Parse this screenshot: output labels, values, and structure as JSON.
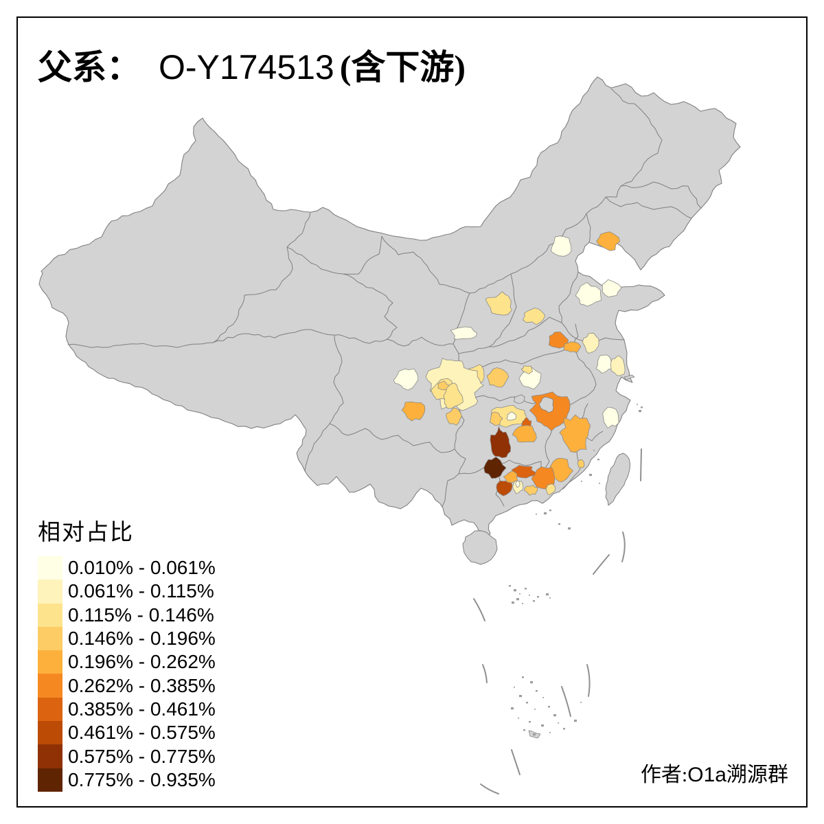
{
  "title": {
    "prefix": "父系：",
    "haplogroup": "O-Y174513",
    "suffix": "(含下游)"
  },
  "author": {
    "prefix": "作者:",
    "latin": "O1a",
    "suffix": "溯源群"
  },
  "legend": {
    "title": "相对占比",
    "classes": [
      {
        "label": "0.010% - 0.061%",
        "color": "#FFFFE5"
      },
      {
        "label": "0.061% - 0.115%",
        "color": "#FDF3BB"
      },
      {
        "label": "0.115% - 0.146%",
        "color": "#FDE38C"
      },
      {
        "label": "0.146% - 0.196%",
        "color": "#FDCC65"
      },
      {
        "label": "0.196% - 0.262%",
        "color": "#FDB03C"
      },
      {
        "label": "0.262% - 0.385%",
        "color": "#F58821"
      },
      {
        "label": "0.385% - 0.461%",
        "color": "#DC630F"
      },
      {
        "label": "0.461% - 0.575%",
        "color": "#BC4B06"
      },
      {
        "label": "0.575% - 0.775%",
        "color": "#8F3104"
      },
      {
        "label": "0.775% - 0.935%",
        "color": "#5F2402"
      }
    ]
  },
  "map": {
    "base_fill": "#D3D3D3",
    "border_color": "#7F7F7F",
    "sea_color": "#FFFFFF",
    "frame_color": "#000000",
    "regions": [
      {
        "id": "huludao",
        "class_index": 5
      },
      {
        "id": "beijing",
        "class_index": 1
      },
      {
        "id": "taiyuan",
        "class_index": 3
      },
      {
        "id": "handan",
        "class_index": 3
      },
      {
        "id": "jinan",
        "class_index": 1
      },
      {
        "id": "weifang",
        "class_index": 1
      },
      {
        "id": "hanzhong",
        "class_index": 1
      },
      {
        "id": "hubei_w",
        "class_index": 3
      },
      {
        "id": "hubei_c",
        "class_index": 4
      },
      {
        "id": "suizhou",
        "class_index": 1
      },
      {
        "id": "suizhou_n",
        "class_index": 3
      },
      {
        "id": "xinyang_w",
        "class_index": 6
      },
      {
        "id": "xinyang_e",
        "class_index": 5
      },
      {
        "id": "yancheng",
        "class_index": 2
      },
      {
        "id": "nanjing",
        "class_index": 1
      },
      {
        "id": "nantong",
        "class_index": 2
      },
      {
        "id": "taizhou",
        "class_index": 1
      },
      {
        "id": "chengdu",
        "class_index": 1
      },
      {
        "id": "cq_big",
        "class_index": 2
      },
      {
        "id": "cq_mid",
        "class_index": 3
      },
      {
        "id": "cq_core",
        "class_index": 4
      },
      {
        "id": "panzhihua",
        "class_index": 5
      },
      {
        "id": "zunyi",
        "class_index": 3
      },
      {
        "id": "guiyang",
        "class_index": 4
      },
      {
        "id": "hunan_band",
        "class_index": 3
      },
      {
        "id": "band_w",
        "class_index": 4
      },
      {
        "id": "band_core",
        "class_index": 1
      },
      {
        "id": "jx_big",
        "class_index": 6
      },
      {
        "id": "jx_e",
        "class_index": 5
      },
      {
        "id": "loudi",
        "class_index": 7
      },
      {
        "id": "ganzhou",
        "class_index": 5
      },
      {
        "id": "hengyang",
        "class_index": 5
      },
      {
        "id": "qingyuan",
        "class_index": 6
      },
      {
        "id": "chenzhou",
        "class_index": 7
      },
      {
        "id": "dark9",
        "class_index": 9
      },
      {
        "id": "dark10",
        "class_index": 10
      },
      {
        "id": "wuzhou",
        "class_index": 8
      },
      {
        "id": "gx_orange",
        "class_index": 5
      },
      {
        "id": "zhaoqing",
        "class_index": 2
      },
      {
        "id": "zhaoqing_core",
        "class_index": 1
      },
      {
        "id": "heyuan",
        "class_index": 4
      },
      {
        "id": "meizhou",
        "class_index": 3
      },
      {
        "id": "xiamen",
        "class_index": 4
      }
    ]
  }
}
